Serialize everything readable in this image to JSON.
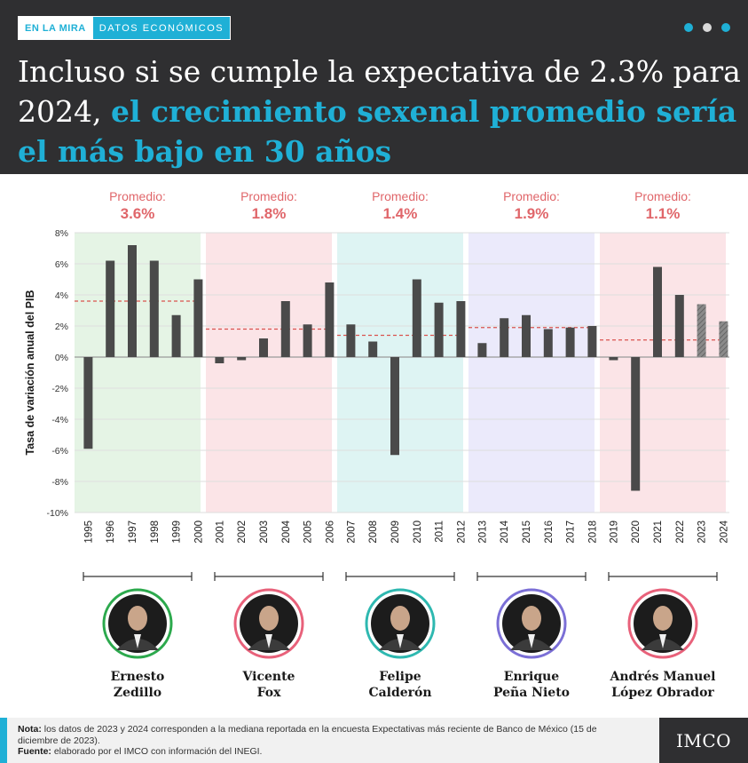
{
  "header": {
    "tag_primary": "EN LA MIRA",
    "tag_secondary": "DATOS ECONÓMICOS",
    "headline_plain": "Incluso si se cumple la expectativa de 2.3% para 2024, ",
    "headline_highlight": "el crecimiento sexenal promedio sería el más bajo en 30 años",
    "dot_colors": [
      "#1fb0d6",
      "#d9d9d9",
      "#1fb0d6"
    ]
  },
  "colors": {
    "accent": "#1fb0d6",
    "bar": "#4a4a4a",
    "average_line": "#d9534f",
    "average_text": "#e0666a"
  },
  "chart_data": {
    "type": "bar",
    "ylabel": "Tasa de variación anual del PIB",
    "ylim": [
      -10,
      8
    ],
    "yticks": [
      8,
      6,
      4,
      2,
      0,
      -2,
      -4,
      -6,
      -8,
      -10
    ],
    "ytick_labels": [
      "8%",
      "6%",
      "4%",
      "2%",
      "0%",
      "-2%",
      "-4%",
      "-6%",
      "-8%",
      "-10%"
    ],
    "average_label": "Promedio:",
    "groups": [
      {
        "president_line1": "Ernesto",
        "president_line2": "Zedillo",
        "average": 3.6,
        "average_label": "3.6%",
        "panel_color": "#e5f4e5",
        "ring_color": "#2ca94d",
        "years": [
          "1995",
          "1996",
          "1997",
          "1998",
          "1999",
          "2000"
        ],
        "values": [
          -5.9,
          6.2,
          7.2,
          6.2,
          2.7,
          5.0
        ],
        "projected": [
          false,
          false,
          false,
          false,
          false,
          false
        ]
      },
      {
        "president_line1": "Vicente",
        "president_line2": "Fox",
        "average": 1.8,
        "average_label": "1.8%",
        "panel_color": "#fbe4e7",
        "ring_color": "#e8617a",
        "years": [
          "2001",
          "2002",
          "2003",
          "2004",
          "2005",
          "2006"
        ],
        "values": [
          -0.4,
          -0.2,
          1.2,
          3.6,
          2.1,
          4.8
        ],
        "projected": [
          false,
          false,
          false,
          false,
          false,
          false
        ]
      },
      {
        "president_line1": "Felipe",
        "president_line2": "Calderón",
        "average": 1.4,
        "average_label": "1.4%",
        "panel_color": "#def4f3",
        "ring_color": "#2eb8b0",
        "years": [
          "2007",
          "2008",
          "2009",
          "2010",
          "2011",
          "2012"
        ],
        "values": [
          2.1,
          1.0,
          -6.3,
          5.0,
          3.5,
          3.6
        ],
        "projected": [
          false,
          false,
          false,
          false,
          false,
          false
        ]
      },
      {
        "president_line1": "Enrique",
        "president_line2": "Peña Nieto",
        "average": 1.9,
        "average_label": "1.9%",
        "panel_color": "#ebeafb",
        "ring_color": "#7b6fd6",
        "years": [
          "2013",
          "2014",
          "2015",
          "2016",
          "2017",
          "2018"
        ],
        "values": [
          0.9,
          2.5,
          2.7,
          1.8,
          1.9,
          2.0
        ],
        "projected": [
          false,
          false,
          false,
          false,
          false,
          false
        ]
      },
      {
        "president_line1": "Andrés Manuel",
        "president_line2": "López Obrador",
        "average": 1.1,
        "average_label": "1.1%",
        "panel_color": "#fbe4e7",
        "ring_color": "#e8617a",
        "years": [
          "2019",
          "2020",
          "2021",
          "2022",
          "2023",
          "2024"
        ],
        "values": [
          -0.2,
          -8.6,
          5.8,
          4.0,
          3.4,
          2.3
        ],
        "projected": [
          false,
          false,
          false,
          false,
          true,
          true
        ]
      }
    ]
  },
  "footer": {
    "note_label": "Nota:",
    "note_text": " los datos de 2023 y 2024 corresponden a la mediana reportada en la encuesta Expectativas más reciente de Banco de México (15 de diciembre de 2023).",
    "source_label": "Fuente:",
    "source_text": " elaborado por el IMCO con información del INEGI.",
    "logo_text": "IMCO"
  }
}
